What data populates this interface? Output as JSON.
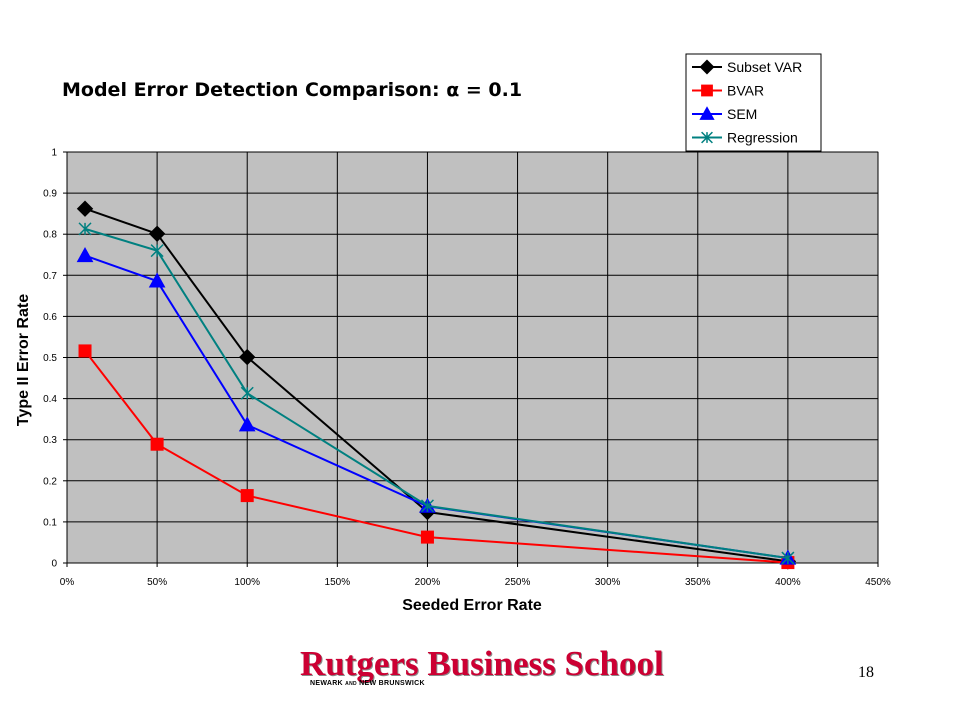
{
  "chart_data": {
    "type": "line",
    "title": "Model Error Detection Comparison: α = 0.1",
    "xlabel": "Seeded Error Rate",
    "ylabel": "Type II Error Rate",
    "xlim": [
      0,
      4.5
    ],
    "ylim": [
      0,
      1
    ],
    "x_ticks": [
      0,
      0.5,
      1,
      1.5,
      2,
      2.5,
      3,
      3.5,
      4,
      4.5
    ],
    "x_tick_labels": [
      "0%",
      "50%",
      "100%",
      "150%",
      "200%",
      "250%",
      "300%",
      "350%",
      "400%",
      "450%"
    ],
    "y_ticks": [
      0,
      0.1,
      0.2,
      0.3,
      0.4,
      0.5,
      0.6,
      0.7,
      0.8,
      0.9,
      1
    ],
    "y_tick_labels": [
      "0",
      "0.1",
      "0.2",
      "0.3",
      "0.4",
      "0.5",
      "0.6",
      "0.7",
      "0.8",
      "0.9",
      "1"
    ],
    "grid": true,
    "legend_position": "top-right",
    "plot_background": "#c0c0c0",
    "x": [
      0.1,
      0.5,
      1,
      2,
      4
    ],
    "series": [
      {
        "name": "Subset VAR",
        "color": "#000000",
        "marker": "diamond",
        "values": [
          0.862,
          0.801,
          0.501,
          0.124,
          0.004
        ]
      },
      {
        "name": "BVAR",
        "color": "#ff0000",
        "marker": "square",
        "values": [
          0.516,
          0.289,
          0.164,
          0.063,
          0.001
        ]
      },
      {
        "name": "SEM",
        "color": "#0000ff",
        "marker": "triangle",
        "values": [
          0.748,
          0.686,
          0.336,
          0.138,
          0.012
        ]
      },
      {
        "name": "Regression",
        "color": "#008080",
        "marker": "star",
        "values": [
          0.813,
          0.76,
          0.413,
          0.139,
          0.012
        ]
      }
    ]
  },
  "footer": {
    "brand_name": "Rutgers Business School",
    "brand_sub_1": "NEWARK",
    "brand_sub_and": "AND",
    "brand_sub_2": "NEW BRUNSWICK",
    "page_number": "18",
    "brand_color": "#cc0033"
  }
}
